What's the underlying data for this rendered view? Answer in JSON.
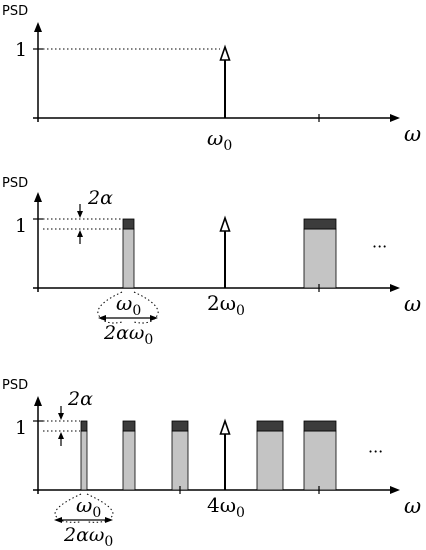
{
  "panels": [
    {
      "ylabel": "PSD",
      "ytick": "1",
      "xlabel": "ω",
      "center_label": "ω",
      "center_sub": "0",
      "ellipsis": ""
    },
    {
      "ylabel": "PSD",
      "ytick": "1",
      "xlabel": "ω",
      "center_label": "2ω",
      "center_sub": "0",
      "ellipsis": "···",
      "width_label": "2α",
      "omega0_label": "ω",
      "omega0_sub": "0",
      "span_label": "2αω",
      "span_sub": "0"
    },
    {
      "ylabel": "PSD",
      "ytick": "1",
      "xlabel": "ω",
      "center_label": "4ω",
      "center_sub": "0",
      "ellipsis": "···",
      "width_label": "2α",
      "omega0_label": "ω",
      "omega0_sub": "0",
      "span_label": "2αω",
      "span_sub": "0"
    }
  ],
  "colors": {
    "bar_low": "#c4c4c4",
    "bar_high": "#3c3c3c",
    "axis": "#000000"
  }
}
